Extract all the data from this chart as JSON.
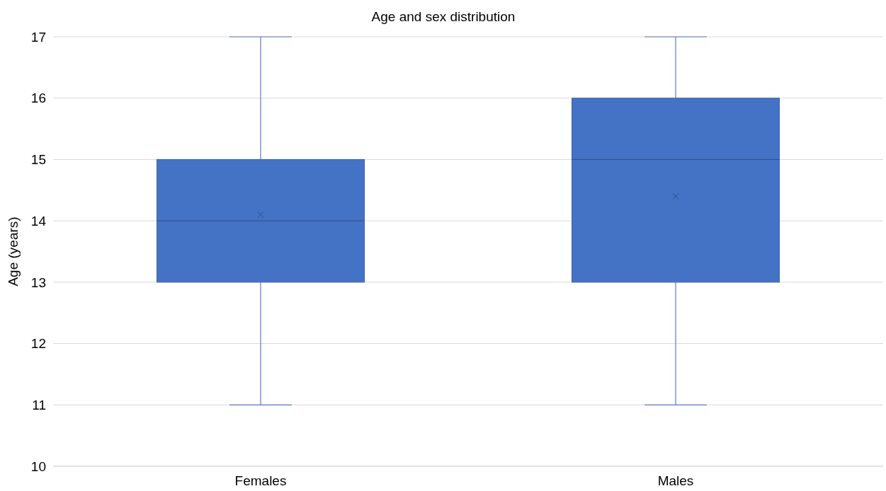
{
  "chart_data": {
    "type": "box",
    "title": "Age and sex distribution",
    "ylabel": "Age (years)",
    "categories": [
      "Females",
      "Males"
    ],
    "color": "#4472c4",
    "boxes": [
      {
        "low": 11,
        "q1": 13,
        "median": 14,
        "q3": 15,
        "high": 17,
        "mean": 14.1
      },
      {
        "low": 11,
        "q1": 13,
        "median": 15,
        "q3": 16,
        "high": 17,
        "mean": 14.4
      }
    ],
    "ylim": [
      10,
      17
    ],
    "yticks": [
      10,
      11,
      12,
      13,
      14,
      15,
      16,
      17
    ],
    "grid": "y",
    "marker": "cross"
  }
}
